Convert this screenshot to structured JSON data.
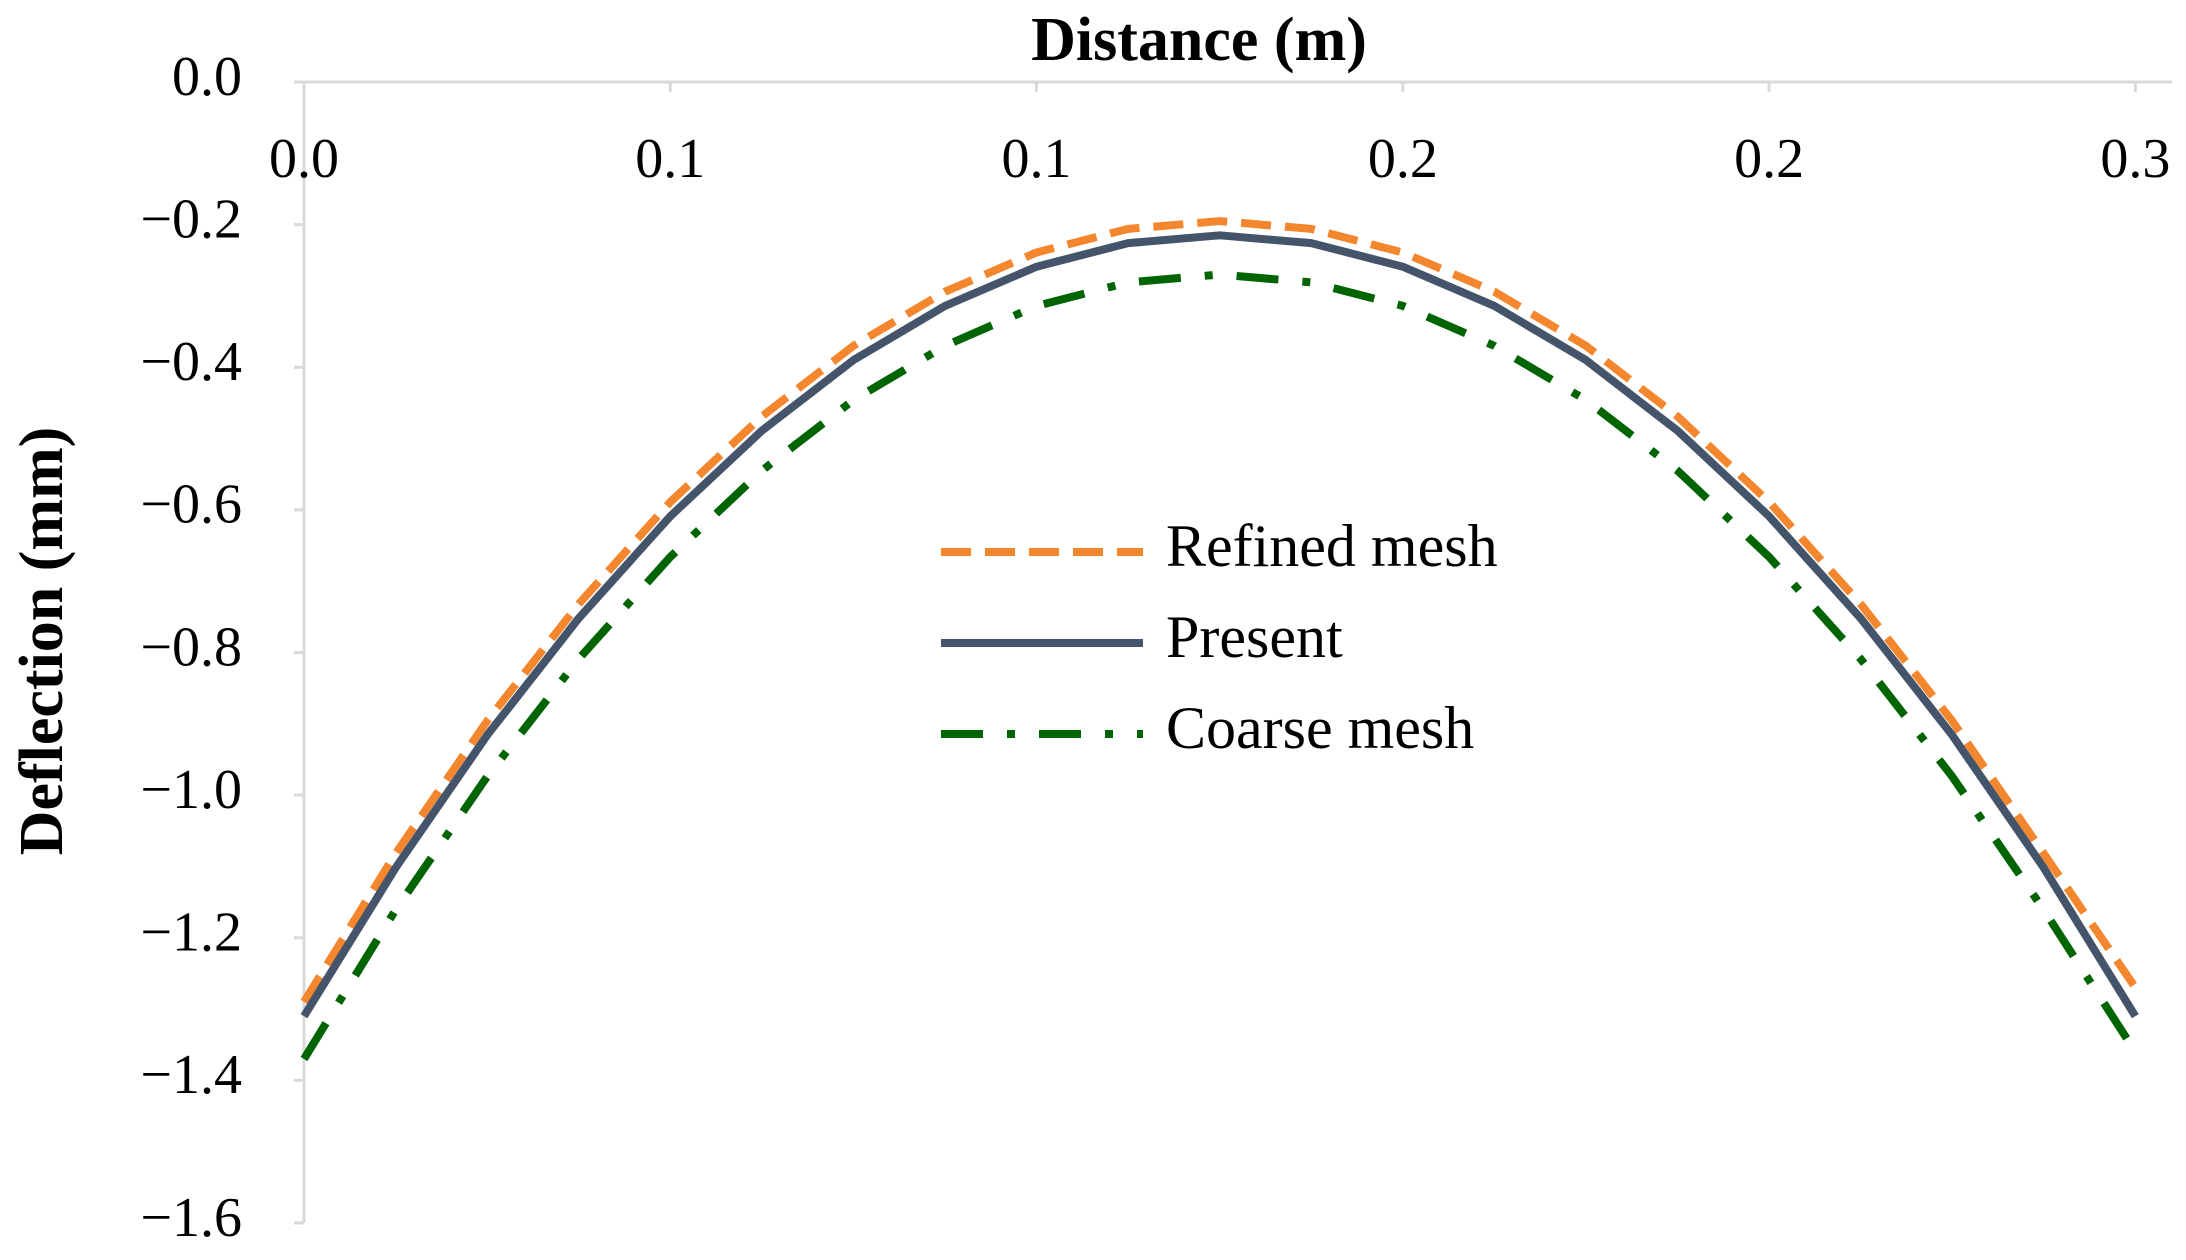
{
  "chart_data": {
    "type": "line",
    "x_label": "Distance (m)",
    "y_label": "Deflection (mm)",
    "x": [
      0,
      0.0125,
      0.025,
      0.0375,
      0.05,
      0.0625,
      0.075,
      0.0875,
      0.1,
      0.1125,
      0.125,
      0.1375,
      0.15,
      0.1625,
      0.175,
      0.1875,
      0.2,
      0.2125,
      0.225,
      0.2375,
      0.25
    ],
    "series": [
      {
        "name": "Refined mesh",
        "color": "#f4862e",
        "dash": "dashed",
        "values": [
          -1.29,
          -1.082,
          -0.896,
          -0.732,
          -0.589,
          -0.469,
          -0.37,
          -0.294,
          -0.239,
          -0.206,
          -0.195,
          -0.206,
          -0.239,
          -0.294,
          -0.37,
          -0.469,
          -0.589,
          -0.732,
          -0.896,
          -1.082,
          -1.27
        ]
      },
      {
        "name": "Present",
        "color": "#44546a",
        "dash": "solid",
        "values": [
          -1.31,
          -1.102,
          -0.916,
          -0.752,
          -0.609,
          -0.489,
          -0.39,
          -0.314,
          -0.259,
          -0.226,
          -0.215,
          -0.226,
          -0.259,
          -0.314,
          -0.39,
          -0.489,
          -0.609,
          -0.752,
          -0.916,
          -1.102,
          -1.31
        ]
      },
      {
        "name": "Coarse mesh",
        "color": "#006400",
        "dash": "dashdot",
        "values": [
          -1.37,
          -1.161,
          -0.974,
          -0.809,
          -0.666,
          -0.545,
          -0.446,
          -0.37,
          -0.314,
          -0.281,
          -0.27,
          -0.281,
          -0.314,
          -0.37,
          -0.446,
          -0.545,
          -0.666,
          -0.809,
          -0.974,
          -1.161,
          -1.36
        ]
      }
    ],
    "xlim": [
      0,
      0.255
    ],
    "ylim": [
      -1.6,
      0
    ],
    "xticks": [
      {
        "value": 0,
        "label": "0.0"
      },
      {
        "value": 0.05,
        "label": "0.1"
      },
      {
        "value": 0.1,
        "label": "0.1"
      },
      {
        "value": 0.15,
        "label": "0.2"
      },
      {
        "value": 0.2,
        "label": "0.2"
      },
      {
        "value": 0.25,
        "label": "0.3"
      }
    ],
    "yticks": [
      {
        "value": 0,
        "label": "0.0"
      },
      {
        "value": -0.2,
        "label": "−0.2"
      },
      {
        "value": -0.4,
        "label": "−0.4"
      },
      {
        "value": -0.6,
        "label": "−0.6"
      },
      {
        "value": -0.8,
        "label": "−0.8"
      },
      {
        "value": -1,
        "label": "−1.0"
      },
      {
        "value": -1.2,
        "label": "−1.2"
      },
      {
        "value": -1.4,
        "label": "−1.4"
      },
      {
        "value": -1.6,
        "label": "−1.6"
      }
    ],
    "x_axis_position": "top",
    "grid": false
  }
}
